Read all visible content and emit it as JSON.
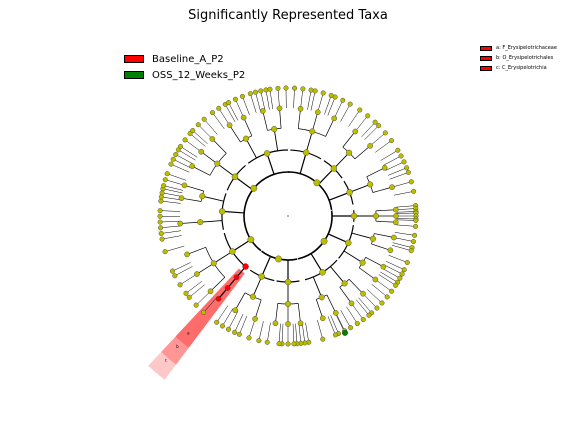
{
  "title": "Significantly Represented Taxa",
  "colors": {
    "node": "#bcbc00",
    "baseline": "#ff0000",
    "oss": "#008000",
    "branch": "#000000"
  },
  "legend": [
    {
      "label": "Baseline_A_P2",
      "color": "#ff0000"
    },
    {
      "label": "OSS_12_Weeks_P2",
      "color": "#008000"
    }
  ],
  "clade_legend": [
    {
      "label": "a: F_Erysipelotrichaceae",
      "color": "#ff0000"
    },
    {
      "label": "b: O_Erysipelotrichales",
      "color": "#ff0000"
    },
    {
      "label": "c: C_Erysipelotrichia",
      "color": "#ff0000"
    }
  ],
  "highlight_letters": [
    "c",
    "b",
    "a"
  ]
}
